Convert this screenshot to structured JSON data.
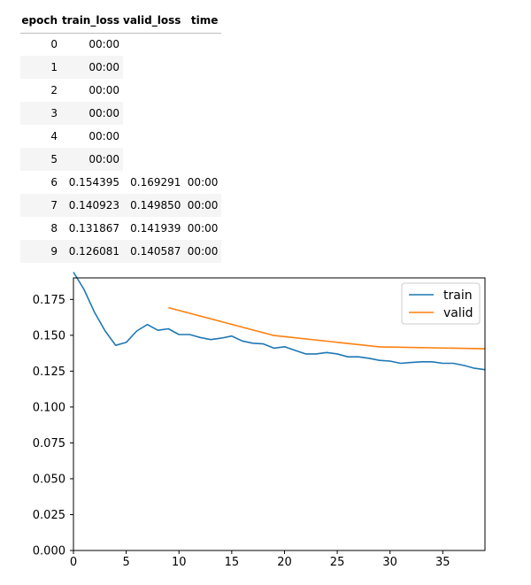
{
  "table": {
    "headers": [
      "epoch",
      "train_loss",
      "valid_loss",
      "time"
    ],
    "rows": [
      {
        "epoch": "0",
        "train_loss": "",
        "valid_loss": "",
        "time": "00:00"
      },
      {
        "epoch": "1",
        "train_loss": "",
        "valid_loss": "",
        "time": "00:00"
      },
      {
        "epoch": "2",
        "train_loss": "",
        "valid_loss": "",
        "time": "00:00"
      },
      {
        "epoch": "3",
        "train_loss": "",
        "valid_loss": "",
        "time": "00:00"
      },
      {
        "epoch": "4",
        "train_loss": "",
        "valid_loss": "",
        "time": "00:00"
      },
      {
        "epoch": "5",
        "train_loss": "",
        "valid_loss": "",
        "time": "00:00"
      },
      {
        "epoch": "6",
        "train_loss": "0.154395",
        "valid_loss": "0.169291",
        "time": "00:00"
      },
      {
        "epoch": "7",
        "train_loss": "0.140923",
        "valid_loss": "0.149850",
        "time": "00:00"
      },
      {
        "epoch": "8",
        "train_loss": "0.131867",
        "valid_loss": "0.141939",
        "time": "00:00"
      },
      {
        "epoch": "9",
        "train_loss": "0.126081",
        "valid_loss": "0.140587",
        "time": "00:00"
      }
    ]
  },
  "chart_data": {
    "type": "line",
    "title": "",
    "xlabel": "",
    "ylabel": "",
    "xlim": [
      0,
      39
    ],
    "ylim": [
      0.0,
      0.19
    ],
    "xticks": [
      "0",
      "5",
      "10",
      "15",
      "20",
      "25",
      "30",
      "35"
    ],
    "yticks": [
      "0.000",
      "0.025",
      "0.050",
      "0.075",
      "0.100",
      "0.125",
      "0.150",
      "0.175"
    ],
    "grid": false,
    "legend_position": "top-right",
    "series": [
      {
        "name": "train",
        "color": "#1f77b4",
        "x": [
          0,
          1,
          2,
          3,
          4,
          5,
          6,
          7,
          8,
          9,
          10,
          11,
          12,
          13,
          14,
          15,
          16,
          17,
          18,
          19,
          20,
          21,
          22,
          23,
          24,
          25,
          26,
          27,
          28,
          29,
          30,
          31,
          32,
          33,
          34,
          35,
          36,
          37,
          38,
          39
        ],
        "y": [
          0.194,
          0.182,
          0.166,
          0.153,
          0.143,
          0.145,
          0.153,
          0.1575,
          0.1535,
          0.1545,
          0.1505,
          0.1505,
          0.1485,
          0.147,
          0.148,
          0.1495,
          0.146,
          0.1445,
          0.144,
          0.141,
          0.142,
          0.1395,
          0.137,
          0.137,
          0.138,
          0.137,
          0.135,
          0.135,
          0.134,
          0.1325,
          0.132,
          0.1305,
          0.131,
          0.1315,
          0.1315,
          0.1305,
          0.1305,
          0.129,
          0.127,
          0.126
        ]
      },
      {
        "name": "valid",
        "color": "#ff7f0e",
        "x": [
          9,
          19,
          29,
          39
        ],
        "y": [
          0.169291,
          0.14985,
          0.141939,
          0.140587
        ]
      }
    ]
  }
}
